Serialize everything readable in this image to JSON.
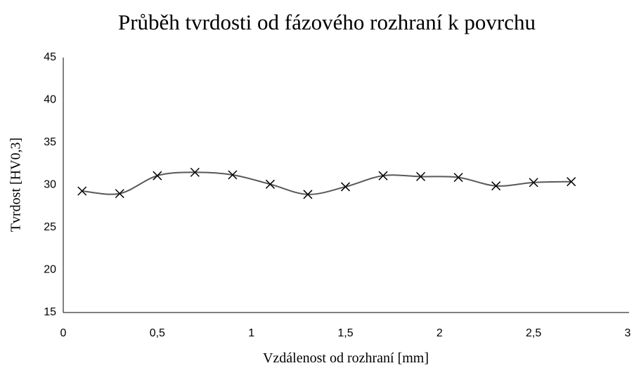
{
  "chart_data": {
    "type": "scatter",
    "title": "Průběh tvrdosti od fázového rozhraní k povrchu",
    "x_label": "Vzdálenost od rozhraní [mm]",
    "y_label": "Tvrdost [HV0,3]",
    "series": [
      {
        "name": "Tvrdost",
        "color": "#595959",
        "x": [
          0.1,
          0.3,
          0.5,
          0.7,
          0.9,
          1.1,
          1.3,
          1.5,
          1.7,
          1.9,
          2.1,
          2.3,
          2.5,
          2.7
        ],
        "values": [
          29.3,
          29.0,
          31.1,
          31.5,
          31.2,
          30.1,
          28.9,
          29.8,
          31.1,
          31.0,
          30.9,
          29.9,
          30.3,
          30.4
        ]
      }
    ],
    "xlim": [
      0,
      3
    ],
    "xticks": [
      0,
      {
        "value": 0.5,
        "label": "0,5"
      },
      1,
      {
        "value": 1.5,
        "label": "1,5"
      },
      2,
      {
        "value": 2.5,
        "label": "2,5"
      },
      3
    ],
    "ylim": [
      15,
      45
    ],
    "yticks": [
      15,
      20,
      25,
      30,
      35,
      40,
      45
    ],
    "smooth": true
  }
}
